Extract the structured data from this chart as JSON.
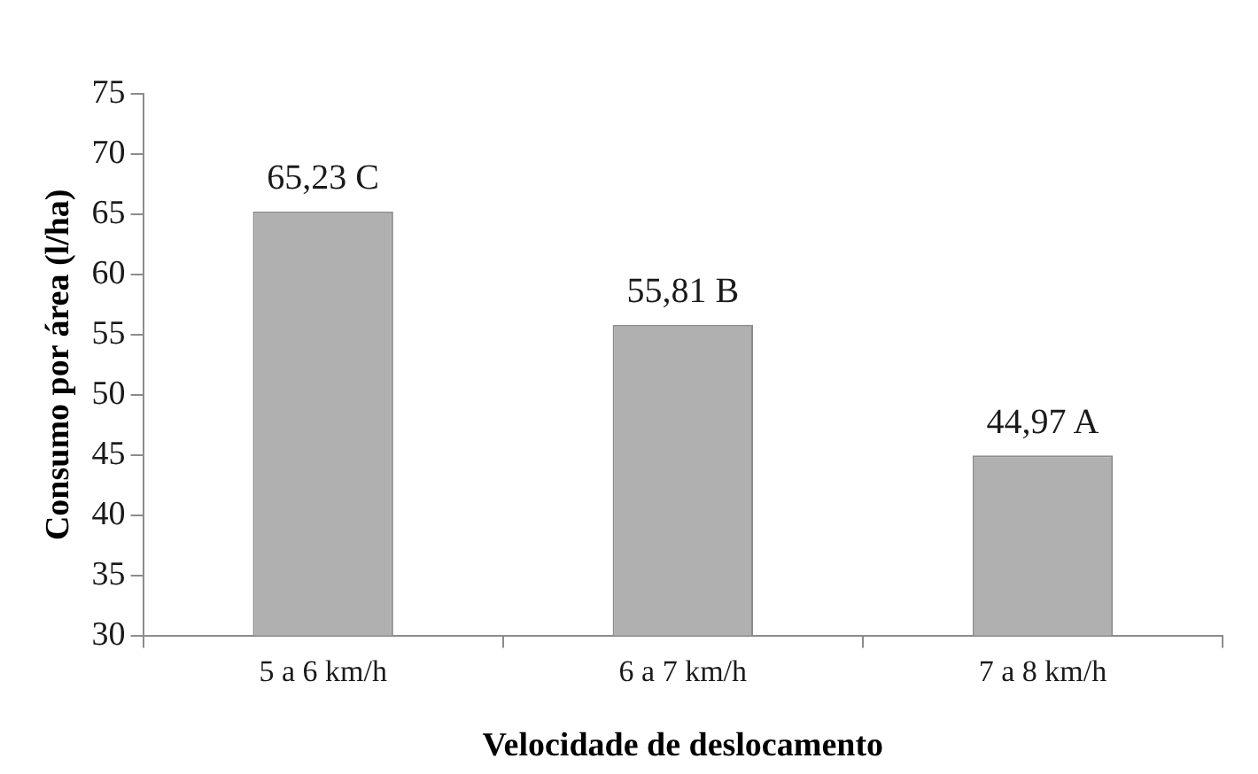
{
  "chart_data": {
    "type": "bar",
    "xlabel": "Velocidade de deslocamento",
    "ylabel": "Consumo por área (l/ha)",
    "categories": [
      "5 a 6 km/h",
      "6 a 7 km/h",
      "7 a 8 km/h"
    ],
    "values": [
      65.23,
      55.81,
      44.97
    ],
    "value_labels": [
      "65,23 C",
      "55,81 B",
      "44,97 A"
    ],
    "color": "#b0b0b0",
    "ylim": [
      30,
      75
    ],
    "yticks": [
      30,
      35,
      40,
      45,
      50,
      55,
      60,
      65,
      70,
      75
    ]
  }
}
